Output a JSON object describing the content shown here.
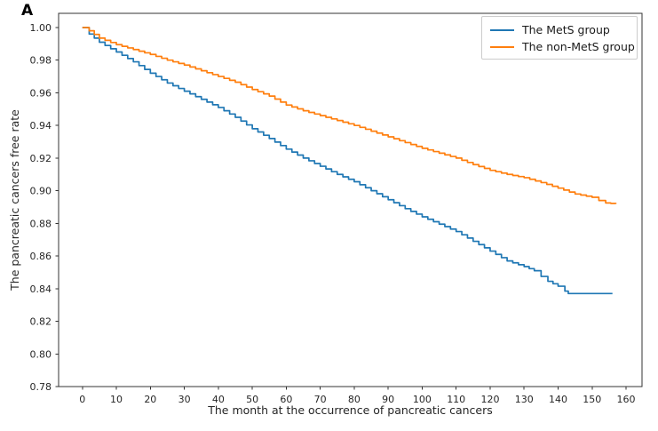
{
  "panel_label": "A",
  "chart_data": {
    "type": "line",
    "subtype": "kaplan-meier-step",
    "title": "",
    "xlabel": "The month at the occurrence of pancreatic cancers",
    "ylabel": "The pancreatic cancers free rate",
    "xlim": [
      -7,
      164.7
    ],
    "ylim": [
      0.78,
      1.0087
    ],
    "xticks": [
      0,
      10,
      20,
      30,
      40,
      50,
      60,
      70,
      80,
      90,
      100,
      110,
      120,
      130,
      140,
      150,
      160
    ],
    "yticks": [
      0.78,
      0.8,
      0.82,
      0.84,
      0.86,
      0.88,
      0.9,
      0.92,
      0.94,
      0.96,
      0.98,
      1.0
    ],
    "grid": false,
    "legend_position": "upper right",
    "axis_color": "#333333",
    "series": [
      {
        "name": "The MetS group",
        "color": "#1f77b4",
        "x": [
          0,
          2,
          5,
          10,
          15,
          20,
          25,
          30,
          35,
          40,
          45,
          50,
          55,
          60,
          65,
          70,
          75,
          80,
          85,
          90,
          95,
          100,
          105,
          110,
          115,
          120,
          125,
          130,
          133,
          135,
          137,
          140,
          142,
          143,
          156
        ],
        "y": [
          1.0,
          0.996,
          0.991,
          0.985,
          0.979,
          0.972,
          0.966,
          0.961,
          0.956,
          0.951,
          0.945,
          0.938,
          0.932,
          0.9255,
          0.92,
          0.915,
          0.91,
          0.9055,
          0.9,
          0.8945,
          0.889,
          0.884,
          0.8795,
          0.875,
          0.869,
          0.863,
          0.857,
          0.8535,
          0.851,
          0.8475,
          0.8445,
          0.8415,
          0.8385,
          0.837,
          0.837
        ]
      },
      {
        "name": "The non-MetS group",
        "color": "#ff7f0e",
        "x": [
          0,
          2,
          5,
          10,
          15,
          20,
          25,
          30,
          35,
          40,
          45,
          50,
          55,
          60,
          65,
          70,
          75,
          80,
          85,
          90,
          95,
          100,
          105,
          110,
          115,
          120,
          125,
          130,
          135,
          140,
          145,
          150,
          152,
          154,
          157
        ],
        "y": [
          1.0,
          0.998,
          0.9935,
          0.9895,
          0.9865,
          0.9835,
          0.98,
          0.977,
          0.9735,
          0.97,
          0.9665,
          0.962,
          0.958,
          0.9525,
          0.949,
          0.946,
          0.943,
          0.94,
          0.9365,
          0.933,
          0.9295,
          0.926,
          0.923,
          0.92,
          0.916,
          0.9125,
          0.91,
          0.908,
          0.905,
          0.9016,
          0.898,
          0.896,
          0.894,
          0.8925,
          0.892
        ]
      }
    ]
  }
}
